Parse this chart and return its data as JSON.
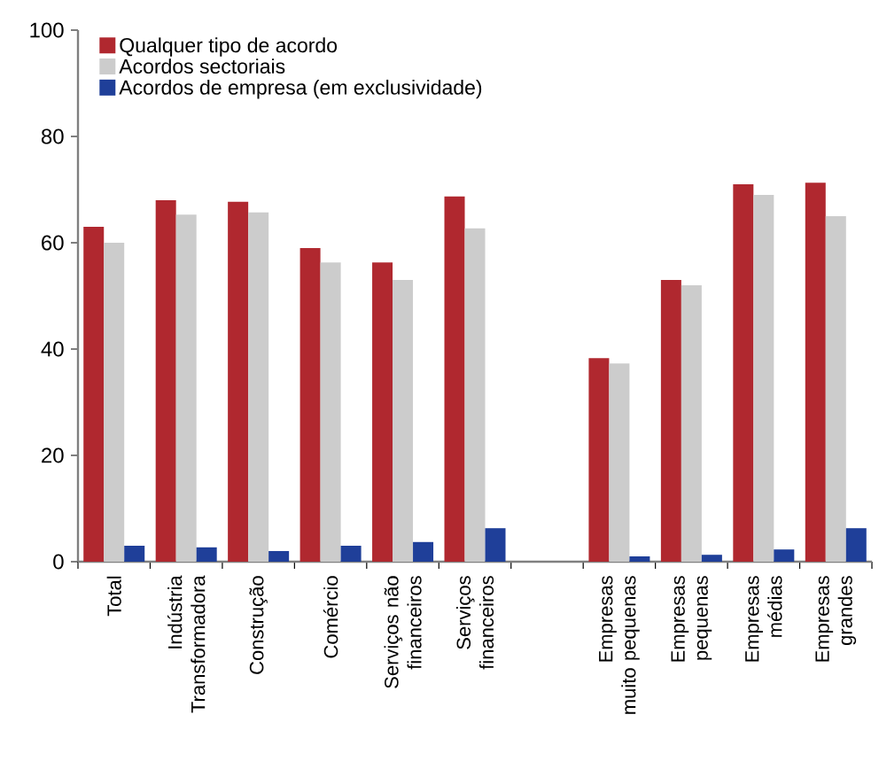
{
  "chart_data": {
    "type": "bar",
    "categories": [
      "Total",
      "Indústria Transformadora",
      "Construção",
      "Comércio",
      "Serviços não financeiros",
      "Serviços financeiros",
      null,
      "Empresas muito pequenas",
      "Empresas pequenas",
      "Empresas médias",
      "Empresas grandes"
    ],
    "series": [
      {
        "name": "Qualquer tipo de acordo",
        "color": "#b0282f",
        "values": [
          63,
          68,
          67.7,
          59,
          56.3,
          68.7,
          null,
          38.3,
          53,
          71,
          71.3
        ]
      },
      {
        "name": "Acordos sectoriais",
        "color": "#cccccc",
        "values": [
          60,
          65.3,
          65.7,
          56.3,
          53,
          62.7,
          null,
          37.3,
          52,
          69,
          65
        ]
      },
      {
        "name": "Acordos de empresa (em exclusividade)",
        "color": "#1f3f99",
        "values": [
          3,
          2.7,
          2,
          3,
          3.7,
          6.3,
          null,
          1,
          1.3,
          2.3,
          6.3
        ]
      }
    ],
    "ylim": [
      0,
      100
    ],
    "yticks": [
      0,
      20,
      40,
      60,
      80,
      100
    ],
    "grid": false,
    "legend": "top left"
  }
}
